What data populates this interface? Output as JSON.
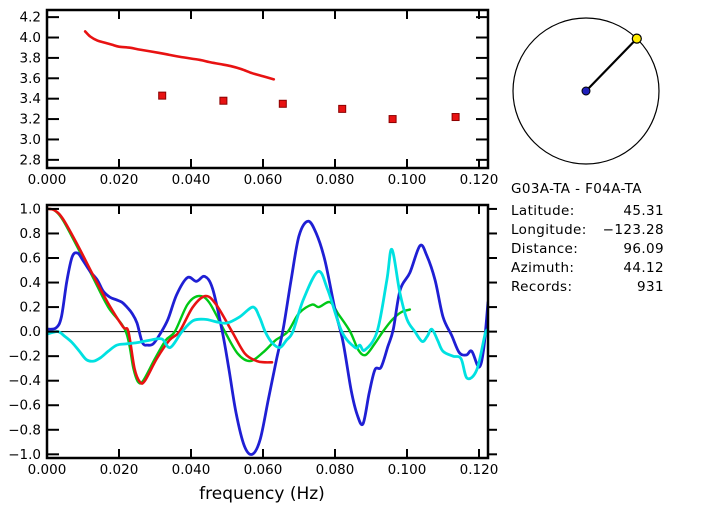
{
  "window": {
    "background": "#ffffff"
  },
  "info": {
    "title": "G03A-TA - F04A-TA",
    "rows": [
      {
        "label": "Latitude:",
        "value": "45.31"
      },
      {
        "label": "Longitude:",
        "value": "−123.28"
      },
      {
        "label": "Distance:",
        "value": "96.09"
      },
      {
        "label": "Azimuth:",
        "value": "44.12"
      },
      {
        "label": "Records:",
        "value": "931"
      }
    ]
  },
  "azimuth_panel": {
    "azimuth_deg": 44.12,
    "circle_color": "#000000",
    "line_color": "#000000",
    "center_dot_color": "#2020bb",
    "edge_dot_color": "#ffec00"
  },
  "chart_data": [
    {
      "id": "dispersion",
      "type": "line",
      "title": "",
      "xlabel": "",
      "ylabel": "",
      "xlim": [
        0,
        0.1225
      ],
      "ylim": [
        2.72,
        4.27
      ],
      "grid": false,
      "zero_line": false,
      "right_ticks": "in",
      "x_ticks": {
        "values": [
          0,
          0.02,
          0.04,
          0.06,
          0.08,
          0.1,
          0.12
        ],
        "labels": [
          "0.000",
          "0.020",
          "0.040",
          "0.060",
          "0.080",
          "0.100",
          "0.120"
        ]
      },
      "y_ticks": {
        "values": [
          2.8,
          3.0,
          3.2,
          3.4,
          3.6,
          3.8,
          4.0,
          4.2
        ],
        "labels": [
          "2.8",
          "3.0",
          "3.2",
          "3.4",
          "3.6",
          "3.8",
          "4.0",
          "4.2"
        ]
      },
      "series": [
        {
          "name": "phase-velocity-model",
          "color": "#e81212",
          "width": 2.6,
          "points": [
            [
              0.0106,
              4.06
            ],
            [
              0.012,
              4.01
            ],
            [
              0.014,
              3.97
            ],
            [
              0.016,
              3.95
            ],
            [
              0.018,
              3.93
            ],
            [
              0.02,
              3.91
            ],
            [
              0.023,
              3.9
            ],
            [
              0.026,
              3.88
            ],
            [
              0.031,
              3.85
            ],
            [
              0.034,
              3.83
            ],
            [
              0.037,
              3.81
            ],
            [
              0.0425,
              3.78
            ],
            [
              0.045,
              3.76
            ],
            [
              0.048,
              3.74
            ],
            [
              0.051,
              3.72
            ],
            [
              0.054,
              3.69
            ],
            [
              0.057,
              3.65
            ],
            [
              0.06,
              3.62
            ],
            [
              0.063,
              3.59
            ]
          ]
        }
      ],
      "markers": [
        {
          "name": "phase-velocity-measurements",
          "color": "#e81212",
          "edge": "#8b0000",
          "size": 7,
          "points": [
            [
              0.032,
              3.43
            ],
            [
              0.049,
              3.38
            ],
            [
              0.0655,
              3.35
            ],
            [
              0.082,
              3.3
            ],
            [
              0.096,
              3.2
            ],
            [
              0.1135,
              3.22
            ]
          ]
        }
      ]
    },
    {
      "id": "correlation",
      "type": "line",
      "title": "",
      "xlabel": "frequency (Hz)",
      "ylabel": "",
      "xlim": [
        0,
        0.1225
      ],
      "ylim": [
        -1.03,
        1.032
      ],
      "grid": false,
      "zero_line": true,
      "right_ticks": "out",
      "x_ticks": {
        "values": [
          0,
          0.02,
          0.04,
          0.06,
          0.08,
          0.1,
          0.12
        ],
        "labels": [
          "0.000",
          "0.020",
          "0.040",
          "0.060",
          "0.080",
          "0.100",
          "0.120"
        ]
      },
      "y_ticks": {
        "values": [
          -1.0,
          -0.8,
          -0.6,
          -0.4,
          -0.2,
          0.0,
          0.2,
          0.4,
          0.6,
          0.8,
          1.0
        ],
        "labels": [
          "−1.0",
          "−0.8",
          "−0.6",
          "−0.4",
          "−0.2",
          "0.0",
          "0.2",
          "0.4",
          "0.6",
          "0.8",
          "1.0"
        ]
      },
      "series": [
        {
          "name": "green-curve",
          "color": "#00c816",
          "width": 2.4,
          "points": [
            [
              0.0,
              1.0
            ],
            [
              0.002,
              0.99
            ],
            [
              0.0044,
              0.91
            ],
            [
              0.0086,
              0.68
            ],
            [
              0.0128,
              0.44
            ],
            [
              0.017,
              0.2
            ],
            [
              0.0219,
              0.0
            ],
            [
              0.024,
              -0.3
            ],
            [
              0.0253,
              -0.41
            ],
            [
              0.0267,
              -0.4
            ],
            [
              0.03,
              -0.22
            ],
            [
              0.033,
              -0.07
            ],
            [
              0.0355,
              0.0
            ],
            [
              0.039,
              0.22
            ],
            [
              0.042,
              0.29
            ],
            [
              0.045,
              0.24
            ],
            [
              0.0494,
              0.0
            ],
            [
              0.053,
              -0.18
            ],
            [
              0.0564,
              -0.24
            ],
            [
              0.06,
              -0.17
            ],
            [
              0.0635,
              -0.07
            ],
            [
              0.0669,
              0.0
            ],
            [
              0.07,
              0.15
            ],
            [
              0.0736,
              0.22
            ],
            [
              0.0755,
              0.2
            ],
            [
              0.0786,
              0.24
            ],
            [
              0.081,
              0.14
            ],
            [
              0.0842,
              0.0
            ],
            [
              0.0865,
              -0.15
            ],
            [
              0.0885,
              -0.19
            ],
            [
              0.091,
              -0.1
            ],
            [
              0.0933,
              0.0
            ],
            [
              0.096,
              0.1
            ],
            [
              0.0985,
              0.16
            ],
            [
              0.1008,
              0.18
            ]
          ]
        },
        {
          "name": "blue-curve",
          "color": "#1f1fd4",
          "width": 2.8,
          "points": [
            [
              0.0,
              0.02
            ],
            [
              0.0025,
              0.03
            ],
            [
              0.004,
              0.12
            ],
            [
              0.0055,
              0.41
            ],
            [
              0.007,
              0.61
            ],
            [
              0.0085,
              0.64
            ],
            [
              0.01,
              0.58
            ],
            [
              0.012,
              0.49
            ],
            [
              0.014,
              0.42
            ],
            [
              0.0156,
              0.33
            ],
            [
              0.0175,
              0.28
            ],
            [
              0.0192,
              0.26
            ],
            [
              0.0208,
              0.24
            ],
            [
              0.0222,
              0.2
            ],
            [
              0.0236,
              0.15
            ],
            [
              0.025,
              0.07
            ],
            [
              0.0265,
              -0.09
            ],
            [
              0.028,
              -0.11
            ],
            [
              0.0295,
              -0.1
            ],
            [
              0.0314,
              -0.02
            ],
            [
              0.0336,
              0.1
            ],
            [
              0.036,
              0.3
            ],
            [
              0.039,
              0.44
            ],
            [
              0.0415,
              0.41
            ],
            [
              0.0438,
              0.45
            ],
            [
              0.046,
              0.35
            ],
            [
              0.0487,
              0.0
            ],
            [
              0.0505,
              -0.3
            ],
            [
              0.0525,
              -0.66
            ],
            [
              0.0548,
              -0.93
            ],
            [
              0.057,
              -1.0
            ],
            [
              0.0592,
              -0.88
            ],
            [
              0.0615,
              -0.55
            ],
            [
              0.0638,
              -0.22
            ],
            [
              0.0656,
              0.02
            ],
            [
              0.0678,
              0.42
            ],
            [
              0.07,
              0.78
            ],
            [
              0.0725,
              0.9
            ],
            [
              0.0748,
              0.8
            ],
            [
              0.0772,
              0.58
            ],
            [
              0.08,
              0.18
            ],
            [
              0.0822,
              -0.08
            ],
            [
              0.0845,
              -0.48
            ],
            [
              0.0862,
              -0.68
            ],
            [
              0.0878,
              -0.75
            ],
            [
              0.0895,
              -0.5
            ],
            [
              0.0911,
              -0.31
            ],
            [
              0.0928,
              -0.29
            ],
            [
              0.0947,
              -0.12
            ],
            [
              0.0962,
              0.02
            ],
            [
              0.0981,
              0.34
            ],
            [
              0.1008,
              0.48
            ],
            [
              0.1036,
              0.7
            ],
            [
              0.1055,
              0.62
            ],
            [
              0.1078,
              0.42
            ],
            [
              0.11,
              0.12
            ],
            [
              0.1124,
              -0.03
            ],
            [
              0.1145,
              -0.17
            ],
            [
              0.1165,
              -0.19
            ],
            [
              0.118,
              -0.16
            ],
            [
              0.12,
              -0.29
            ],
            [
              0.1213,
              -0.14
            ],
            [
              0.1225,
              0.24
            ]
          ]
        },
        {
          "name": "red-curve",
          "color": "#e81212",
          "width": 2.6,
          "points": [
            [
              0.0,
              1.0
            ],
            [
              0.002,
              0.99
            ],
            [
              0.0044,
              0.92
            ],
            [
              0.0086,
              0.7
            ],
            [
              0.0128,
              0.46
            ],
            [
              0.017,
              0.23
            ],
            [
              0.0211,
              0.04
            ],
            [
              0.0226,
              0.0
            ],
            [
              0.0243,
              -0.3
            ],
            [
              0.0258,
              -0.41
            ],
            [
              0.0272,
              -0.4
            ],
            [
              0.0305,
              -0.22
            ],
            [
              0.034,
              -0.07
            ],
            [
              0.0368,
              0.0
            ],
            [
              0.0405,
              0.2
            ],
            [
              0.044,
              0.29
            ],
            [
              0.047,
              0.22
            ],
            [
              0.0514,
              0.0
            ],
            [
              0.055,
              -0.18
            ],
            [
              0.0583,
              -0.24
            ],
            [
              0.0605,
              -0.25
            ],
            [
              0.0625,
              -0.25
            ]
          ]
        },
        {
          "name": "cyan-curve",
          "color": "#00e1e1",
          "width": 2.8,
          "points": [
            [
              0.0,
              -0.02
            ],
            [
              0.003,
              0.0
            ],
            [
              0.005,
              -0.04
            ],
            [
              0.007,
              -0.09
            ],
            [
              0.009,
              -0.16
            ],
            [
              0.011,
              -0.23
            ],
            [
              0.013,
              -0.24
            ],
            [
              0.015,
              -0.21
            ],
            [
              0.017,
              -0.16
            ],
            [
              0.0194,
              -0.11
            ],
            [
              0.022,
              -0.1
            ],
            [
              0.025,
              -0.09
            ],
            [
              0.0285,
              -0.07
            ],
            [
              0.0319,
              -0.06
            ],
            [
              0.0342,
              -0.13
            ],
            [
              0.0375,
              0.0
            ],
            [
              0.0406,
              0.09
            ],
            [
              0.044,
              0.1
            ],
            [
              0.047,
              0.08
            ],
            [
              0.05,
              0.07
            ],
            [
              0.0535,
              0.12
            ],
            [
              0.0572,
              0.2
            ],
            [
              0.059,
              0.12
            ],
            [
              0.0606,
              0.0
            ],
            [
              0.0625,
              -0.09
            ],
            [
              0.0647,
              -0.13
            ],
            [
              0.0665,
              -0.07
            ],
            [
              0.0683,
              0.0
            ],
            [
              0.0712,
              0.26
            ],
            [
              0.0753,
              0.49
            ],
            [
              0.078,
              0.34
            ],
            [
              0.0819,
              0.0
            ],
            [
              0.0856,
              -0.13
            ],
            [
              0.0869,
              -0.11
            ],
            [
              0.0883,
              -0.15
            ],
            [
              0.0917,
              0.0
            ],
            [
              0.0944,
              0.42
            ],
            [
              0.0958,
              0.67
            ],
            [
              0.098,
              0.32
            ],
            [
              0.1,
              0.1
            ],
            [
              0.1022,
              0.0
            ],
            [
              0.1042,
              -0.08
            ],
            [
              0.1056,
              -0.04
            ],
            [
              0.1069,
              0.02
            ],
            [
              0.1085,
              -0.07
            ],
            [
              0.11,
              -0.16
            ],
            [
              0.1128,
              -0.2
            ],
            [
              0.115,
              -0.22
            ],
            [
              0.1167,
              -0.38
            ],
            [
              0.1194,
              -0.31
            ],
            [
              0.1217,
              -0.02
            ],
            [
              0.1225,
              0.01
            ]
          ]
        }
      ],
      "markers": []
    }
  ]
}
